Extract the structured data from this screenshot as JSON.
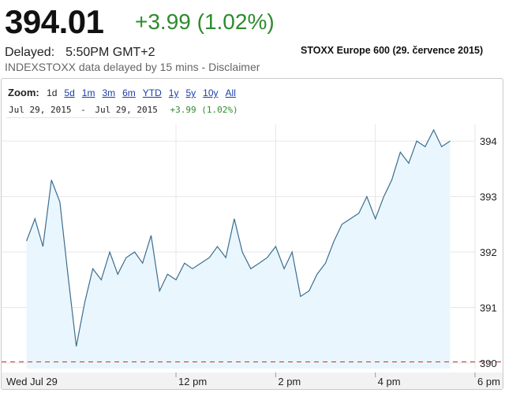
{
  "header": {
    "price": "394.01",
    "change": "+3.99 (1.02%)",
    "delayed_label": "Delayed:",
    "delayed_time": "5:50PM GMT+2",
    "source": "INDEXSTOXX data delayed by 15 mins - Disclaimer",
    "index_title": "STOXX Europe 600 (29. července 2015)"
  },
  "zoom": {
    "label": "Zoom:",
    "options": [
      "1d",
      "5d",
      "1m",
      "3m",
      "6m",
      "YTD",
      "1y",
      "5y",
      "10y",
      "All"
    ],
    "selected": "1d"
  },
  "range": {
    "start": "Jul 29, 2015",
    "separator": "-",
    "end": "Jul 29, 2015",
    "change": "+3.99 (1.02%)"
  },
  "colors": {
    "positive": "#2e8b2e",
    "link": "#1a3ea8",
    "line": "#3b6e8f",
    "fill": "#eaf6fd",
    "dashed": "#c03030"
  },
  "chart_data": {
    "type": "area",
    "x_tick_labels": [
      "Wed Jul 29",
      "12 pm",
      "2 pm",
      "4 pm",
      "6 pm"
    ],
    "y_tick_labels": [
      "390",
      "391",
      "392",
      "393",
      "394"
    ],
    "ylim": [
      389.9,
      394.3
    ],
    "grid": true,
    "x_unit": "hours of day",
    "x": [
      9.0,
      9.17,
      9.33,
      9.5,
      9.67,
      9.83,
      10.0,
      10.17,
      10.33,
      10.5,
      10.67,
      10.83,
      11.0,
      11.17,
      11.33,
      11.5,
      11.67,
      11.83,
      12.0,
      12.17,
      12.33,
      12.5,
      12.67,
      12.83,
      13.0,
      13.17,
      13.33,
      13.5,
      13.67,
      13.83,
      14.0,
      14.17,
      14.33,
      14.5,
      14.67,
      14.83,
      15.0,
      15.17,
      15.33,
      15.5,
      15.67,
      15.83,
      16.0,
      16.17,
      16.33,
      16.5,
      16.67,
      16.83,
      17.0,
      17.17,
      17.33,
      17.5
    ],
    "y": [
      392.2,
      392.6,
      392.1,
      393.3,
      392.9,
      391.6,
      390.3,
      391.1,
      391.7,
      391.5,
      392.0,
      391.6,
      391.9,
      392.0,
      391.8,
      392.3,
      391.3,
      391.6,
      391.5,
      391.8,
      391.7,
      391.8,
      391.9,
      392.1,
      391.9,
      392.6,
      392.0,
      391.7,
      391.8,
      391.9,
      392.1,
      391.7,
      392.0,
      391.2,
      391.3,
      391.6,
      391.8,
      392.2,
      392.5,
      392.6,
      392.7,
      393.0,
      392.6,
      393.0,
      393.3,
      393.8,
      393.6,
      394.0,
      393.9,
      394.2,
      393.9,
      394.0
    ],
    "prev_close": 390.02
  }
}
